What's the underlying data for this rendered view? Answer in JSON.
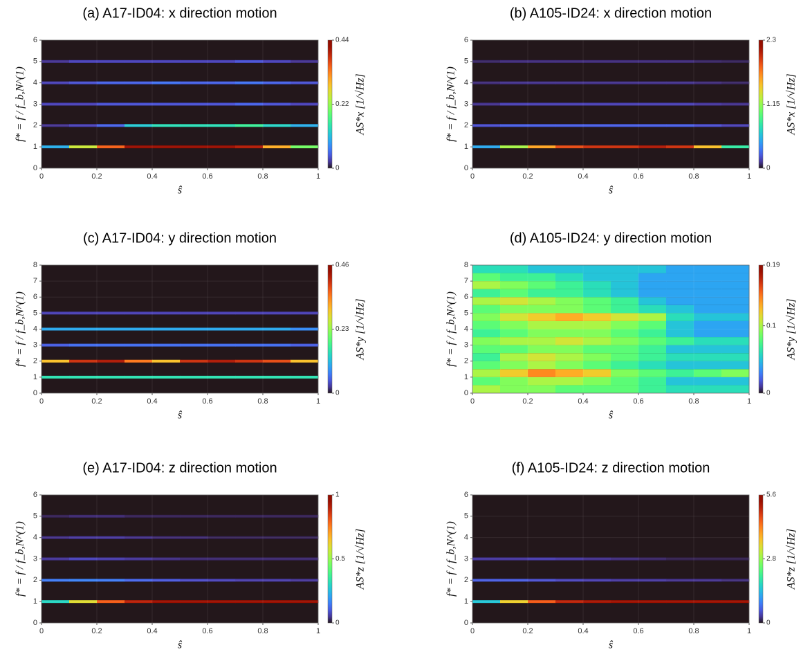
{
  "chart_data": [
    {
      "type": "heatmap",
      "title": "(a) A17-ID04: x direction motion",
      "x_label": "ŝ",
      "y_label": "f* = f / f_b,N^(1)",
      "colorbar_label": "AS*x [1/√Hz]",
      "colormap": "turbo",
      "grid": true,
      "xlim": [
        0,
        1
      ],
      "xticks": [
        0,
        0.2,
        0.4,
        0.6,
        0.8,
        1
      ],
      "ylim": [
        0,
        6
      ],
      "yticks": [
        0,
        1,
        2,
        3,
        4,
        5,
        6
      ],
      "clim": [
        0,
        0.44
      ],
      "cticks": [
        0,
        0.22,
        0.44
      ],
      "x": [
        0.05,
        0.15,
        0.25,
        0.35,
        0.45,
        0.55,
        0.65,
        0.75,
        0.85,
        0.95
      ],
      "rows": [
        {
          "y": 1,
          "values": [
            0.1,
            0.25,
            0.35,
            0.42,
            0.42,
            0.42,
            0.42,
            0.4,
            0.3,
            0.2
          ]
        },
        {
          "y": 2,
          "values": [
            0.02,
            0.03,
            0.05,
            0.12,
            0.14,
            0.14,
            0.14,
            0.16,
            0.13,
            0.1
          ]
        },
        {
          "y": 3,
          "values": [
            0.03,
            0.03,
            0.04,
            0.04,
            0.04,
            0.04,
            0.04,
            0.05,
            0.04,
            0.03
          ]
        },
        {
          "y": 4,
          "values": [
            0.03,
            0.04,
            0.05,
            0.05,
            0.06,
            0.05,
            0.05,
            0.06,
            0.05,
            0.04
          ]
        },
        {
          "y": 5,
          "values": [
            0.02,
            0.03,
            0.03,
            0.03,
            0.03,
            0.03,
            0.03,
            0.04,
            0.03,
            0.02
          ]
        }
      ]
    },
    {
      "type": "heatmap",
      "title": "(b) A105-ID24: x direction motion",
      "x_label": "ŝ",
      "y_label": "f* = f / f_b,N^(1)",
      "colorbar_label": "AS*x [1/√Hz]",
      "colormap": "turbo",
      "grid": true,
      "xlim": [
        0,
        1
      ],
      "xticks": [
        0,
        0.2,
        0.4,
        0.6,
        0.8,
        1
      ],
      "ylim": [
        0,
        6
      ],
      "yticks": [
        0,
        1,
        2,
        3,
        4,
        5,
        6
      ],
      "clim": [
        0,
        2.3
      ],
      "cticks": [
        0,
        1.15,
        2.3
      ],
      "x": [
        0.05,
        0.15,
        0.25,
        0.35,
        0.45,
        0.55,
        0.65,
        0.75,
        0.85,
        0.95
      ],
      "rows": [
        {
          "y": 1,
          "values": [
            0.5,
            1.2,
            1.6,
            1.9,
            2.0,
            2.0,
            2.1,
            2.0,
            1.5,
            0.8
          ]
        },
        {
          "y": 2,
          "values": [
            0.2,
            0.25,
            0.25,
            0.25,
            0.25,
            0.25,
            0.25,
            0.25,
            0.2,
            0.15
          ]
        },
        {
          "y": 3,
          "values": [
            0.1,
            0.15,
            0.15,
            0.15,
            0.15,
            0.15,
            0.15,
            0.15,
            0.12,
            0.1
          ]
        },
        {
          "y": 4,
          "values": [
            0.08,
            0.1,
            0.1,
            0.1,
            0.1,
            0.1,
            0.1,
            0.1,
            0.08,
            0.06
          ]
        },
        {
          "y": 5,
          "values": [
            0.06,
            0.08,
            0.08,
            0.08,
            0.08,
            0.08,
            0.08,
            0.08,
            0.06,
            0.05
          ]
        }
      ]
    },
    {
      "type": "heatmap",
      "title": "(c) A17-ID04: y direction motion",
      "x_label": "ŝ",
      "y_label": "f* = f / f_b,N^(1)",
      "colorbar_label": "AS*y [1/√Hz]",
      "colormap": "turbo",
      "grid": true,
      "xlim": [
        0,
        1
      ],
      "xticks": [
        0,
        0.2,
        0.4,
        0.6,
        0.8,
        1
      ],
      "ylim": [
        0,
        8
      ],
      "yticks": [
        0,
        1,
        2,
        3,
        4,
        5,
        6,
        7,
        8
      ],
      "clim": [
        0,
        0.46
      ],
      "cticks": [
        0,
        0.23,
        0.46
      ],
      "x": [
        0.05,
        0.15,
        0.25,
        0.35,
        0.45,
        0.55,
        0.65,
        0.75,
        0.85,
        0.95
      ],
      "rows": [
        {
          "y": 1,
          "values": [
            0.15,
            0.15,
            0.15,
            0.15,
            0.15,
            0.15,
            0.15,
            0.15,
            0.15,
            0.15
          ]
        },
        {
          "y": 2,
          "values": [
            0.3,
            0.4,
            0.42,
            0.35,
            0.3,
            0.4,
            0.42,
            0.4,
            0.38,
            0.3
          ]
        },
        {
          "y": 3,
          "values": [
            0.05,
            0.06,
            0.06,
            0.06,
            0.06,
            0.06,
            0.06,
            0.06,
            0.06,
            0.05
          ]
        },
        {
          "y": 4,
          "values": [
            0.1,
            0.1,
            0.1,
            0.1,
            0.1,
            0.1,
            0.1,
            0.1,
            0.1,
            0.08
          ]
        },
        {
          "y": 5,
          "values": [
            0.03,
            0.03,
            0.03,
            0.03,
            0.03,
            0.03,
            0.03,
            0.03,
            0.03,
            0.03
          ]
        }
      ]
    },
    {
      "type": "heatmap",
      "title": "(d) A105-ID24: y direction motion",
      "x_label": "ŝ",
      "y_label": "f* = f / f_b,N^(1)",
      "colorbar_label": "AS*y [1/√Hz]",
      "colormap": "turbo",
      "grid": true,
      "xlim": [
        0,
        1
      ],
      "xticks": [
        0,
        0.2,
        0.4,
        0.6,
        0.8,
        1
      ],
      "ylim": [
        0,
        8
      ],
      "yticks": [
        0,
        1,
        2,
        3,
        4,
        5,
        6,
        7,
        8
      ],
      "clim": [
        0,
        0.19
      ],
      "cticks": [
        0,
        0.1,
        0.19
      ],
      "x": [
        0.05,
        0.15,
        0.25,
        0.35,
        0.45,
        0.55,
        0.65,
        0.75,
        0.85,
        0.95
      ],
      "rows": [
        {
          "y": 0.25,
          "values": [
            0.1,
            0.09,
            0.09,
            0.08,
            0.08,
            0.08,
            0.07,
            0.06,
            0.06,
            0.06
          ]
        },
        {
          "y": 0.75,
          "values": [
            0.08,
            0.09,
            0.1,
            0.1,
            0.09,
            0.08,
            0.07,
            0.05,
            0.05,
            0.05
          ]
        },
        {
          "y": 1.25,
          "values": [
            0.1,
            0.12,
            0.14,
            0.13,
            0.12,
            0.09,
            0.08,
            0.07,
            0.08,
            0.09
          ]
        },
        {
          "y": 1.75,
          "values": [
            0.08,
            0.09,
            0.1,
            0.09,
            0.08,
            0.07,
            0.06,
            0.05,
            0.05,
            0.05
          ]
        },
        {
          "y": 2.25,
          "values": [
            0.07,
            0.1,
            0.11,
            0.1,
            0.09,
            0.08,
            0.07,
            0.06,
            0.06,
            0.06
          ]
        },
        {
          "y": 2.75,
          "values": [
            0.08,
            0.08,
            0.09,
            0.09,
            0.08,
            0.08,
            0.07,
            0.05,
            0.05,
            0.05
          ]
        },
        {
          "y": 3.25,
          "values": [
            0.09,
            0.1,
            0.1,
            0.11,
            0.1,
            0.09,
            0.08,
            0.07,
            0.06,
            0.06
          ]
        },
        {
          "y": 3.75,
          "values": [
            0.07,
            0.08,
            0.09,
            0.09,
            0.09,
            0.08,
            0.07,
            0.05,
            0.04,
            0.04
          ]
        },
        {
          "y": 4.25,
          "values": [
            0.08,
            0.09,
            0.1,
            0.1,
            0.1,
            0.09,
            0.08,
            0.05,
            0.04,
            0.04
          ]
        },
        {
          "y": 4.75,
          "values": [
            0.09,
            0.11,
            0.12,
            0.13,
            0.12,
            0.11,
            0.1,
            0.06,
            0.05,
            0.05
          ]
        },
        {
          "y": 5.25,
          "values": [
            0.08,
            0.09,
            0.09,
            0.09,
            0.08,
            0.07,
            0.06,
            0.05,
            0.04,
            0.04
          ]
        },
        {
          "y": 5.75,
          "values": [
            0.1,
            0.11,
            0.1,
            0.09,
            0.08,
            0.07,
            0.05,
            0.04,
            0.04,
            0.04
          ]
        },
        {
          "y": 6.25,
          "values": [
            0.07,
            0.08,
            0.07,
            0.07,
            0.06,
            0.05,
            0.04,
            0.04,
            0.04,
            0.04
          ]
        },
        {
          "y": 6.75,
          "values": [
            0.1,
            0.09,
            0.08,
            0.07,
            0.06,
            0.05,
            0.04,
            0.04,
            0.04,
            0.04
          ]
        },
        {
          "y": 7.25,
          "values": [
            0.08,
            0.07,
            0.07,
            0.06,
            0.05,
            0.05,
            0.04,
            0.04,
            0.04,
            0.04
          ]
        },
        {
          "y": 7.75,
          "values": [
            0.06,
            0.06,
            0.05,
            0.05,
            0.05,
            0.05,
            0.05,
            0.04,
            0.04,
            0.04
          ]
        }
      ]
    },
    {
      "type": "heatmap",
      "title": "(e) A17-ID04: z direction motion",
      "x_label": "ŝ",
      "y_label": "f* = f / f_b,N^(1)",
      "colorbar_label": "AS*z [1/√Hz]",
      "colormap": "turbo",
      "grid": true,
      "xlim": [
        0,
        1
      ],
      "xticks": [
        0,
        0.2,
        0.4,
        0.6,
        0.8,
        1
      ],
      "ylim": [
        0,
        6
      ],
      "yticks": [
        0,
        1,
        2,
        3,
        4,
        5,
        6
      ],
      "clim": [
        0,
        1
      ],
      "cticks": [
        0,
        0.5,
        1
      ],
      "x": [
        0.05,
        0.15,
        0.25,
        0.35,
        0.45,
        0.55,
        0.65,
        0.75,
        0.85,
        0.95
      ],
      "rows": [
        {
          "y": 1,
          "values": [
            0.3,
            0.6,
            0.8,
            0.9,
            0.95,
            0.95,
            0.95,
            0.95,
            0.95,
            0.95
          ]
        },
        {
          "y": 2,
          "values": [
            0.15,
            0.16,
            0.15,
            0.12,
            0.1,
            0.08,
            0.07,
            0.06,
            0.06,
            0.05
          ]
        },
        {
          "y": 3,
          "values": [
            0.05,
            0.07,
            0.06,
            0.05,
            0.04,
            0.03,
            0.03,
            0.03,
            0.03,
            0.03
          ]
        },
        {
          "y": 4,
          "values": [
            0.04,
            0.05,
            0.05,
            0.04,
            0.03,
            0.03,
            0.02,
            0.02,
            0.02,
            0.02
          ]
        },
        {
          "y": 5,
          "values": [
            0.02,
            0.03,
            0.03,
            0.02,
            0.02,
            0.02,
            0.02,
            0.02,
            0.02,
            0.02
          ]
        }
      ]
    },
    {
      "type": "heatmap",
      "title": "(f) A105-ID24: z direction motion",
      "x_label": "ŝ",
      "y_label": "f* = f / f_b,N^(1)",
      "colorbar_label": "AS*z [1/√Hz]",
      "colormap": "turbo",
      "grid": true,
      "xlim": [
        0,
        1
      ],
      "xticks": [
        0,
        0.2,
        0.4,
        0.6,
        0.8,
        1
      ],
      "ylim": [
        0,
        6
      ],
      "yticks": [
        0,
        1,
        2,
        3,
        4,
        5,
        6
      ],
      "clim": [
        0,
        5.6
      ],
      "cticks": [
        0,
        2.8,
        5.6
      ],
      "x": [
        0.05,
        0.15,
        0.25,
        0.35,
        0.45,
        0.55,
        0.65,
        0.75,
        0.85,
        0.95
      ],
      "rows": [
        {
          "y": 1,
          "values": [
            1.5,
            3.5,
            4.5,
            5.0,
            5.2,
            5.3,
            5.3,
            5.3,
            5.3,
            5.3
          ]
        },
        {
          "y": 2,
          "values": [
            0.6,
            0.6,
            0.5,
            0.4,
            0.35,
            0.3,
            0.3,
            0.25,
            0.25,
            0.2
          ]
        },
        {
          "y": 3,
          "values": [
            0.3,
            0.3,
            0.35,
            0.3,
            0.25,
            0.2,
            0.15,
            0.1,
            0.1,
            0.1
          ]
        }
      ]
    }
  ]
}
